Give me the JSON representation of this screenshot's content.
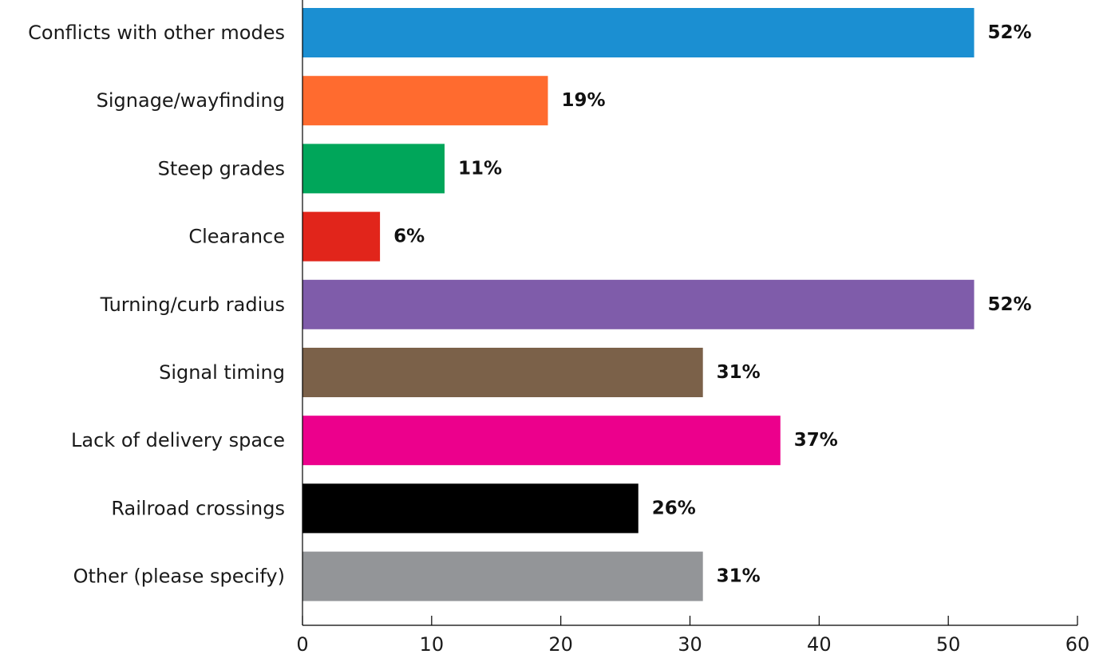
{
  "chart_data": {
    "type": "bar",
    "orientation": "horizontal",
    "categories": [
      "Conflicts with other modes",
      "Signage/wayfinding",
      "Steep grades",
      "Clearance",
      "Turning/curb radius",
      "Signal timing",
      "Lack of delivery space",
      "Railroad crossings",
      "Other (please specify)"
    ],
    "values": [
      52,
      19,
      11,
      6,
      52,
      31,
      37,
      26,
      31
    ],
    "value_labels": [
      "52%",
      "19%",
      "11%",
      "6%",
      "52%",
      "31%",
      "37%",
      "26%",
      "31%"
    ],
    "colors": [
      "#1b8fd2",
      "#ff6b2f",
      "#00a65a",
      "#e1251b",
      "#7f5caa",
      "#7b6149",
      "#ec008c",
      "#000000",
      "#939598"
    ],
    "xlim": [
      0,
      60
    ],
    "xticks": [
      0,
      10,
      20,
      30,
      40,
      50,
      60
    ],
    "xtick_labels": [
      "0",
      "10",
      "20",
      "30",
      "40",
      "50",
      "60"
    ],
    "grid": false,
    "legend": "none"
  }
}
